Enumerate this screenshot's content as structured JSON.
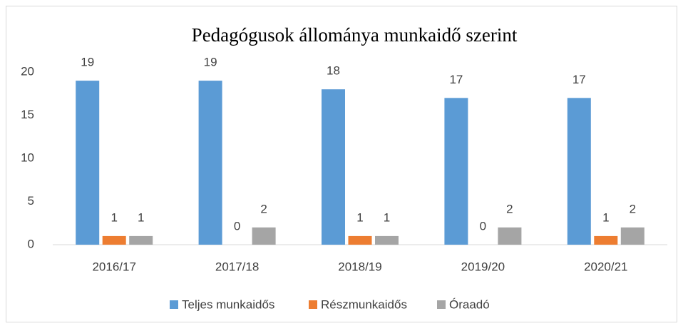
{
  "chart_data": {
    "type": "bar",
    "title": "Pedagógusok állománya munkaidő szerint",
    "categories": [
      "2016/17",
      "2017/18",
      "2018/19",
      "2019/20",
      "2020/21"
    ],
    "series": [
      {
        "name": "Teljes munkaidős",
        "color": "#5b9bd5",
        "values": [
          19,
          19,
          18,
          17,
          17
        ]
      },
      {
        "name": "Részmunkaidős",
        "color": "#ed7d31",
        "values": [
          1,
          0,
          1,
          0,
          1
        ]
      },
      {
        "name": "Óraadó",
        "color": "#a5a5a5",
        "values": [
          1,
          2,
          1,
          2,
          2
        ]
      }
    ],
    "ylim": [
      0,
      20
    ],
    "yticks": [
      0,
      5,
      10,
      15,
      20
    ],
    "grid": false,
    "legend": "bottom"
  }
}
